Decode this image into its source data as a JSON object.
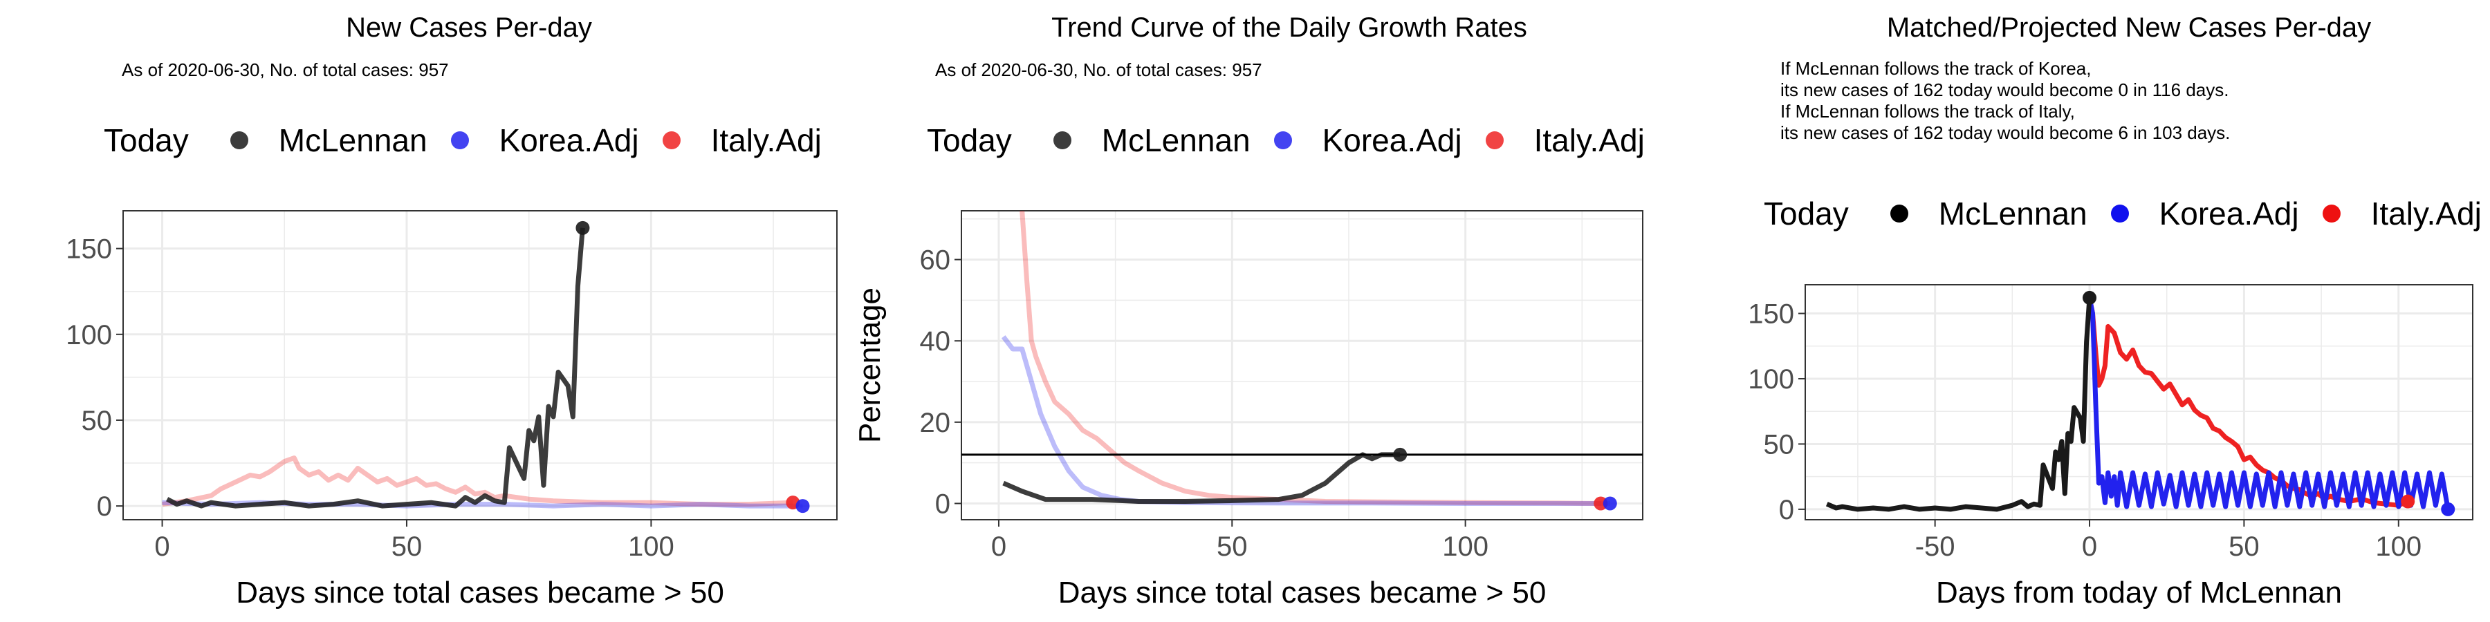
{
  "colors": {
    "mclennan": "#1a1a1a",
    "korea": "#2222ee",
    "italy": "#ee2222",
    "grid": "#ebebeb",
    "frame": "#333333"
  },
  "legend": {
    "title": "Today",
    "items": [
      "McLennan",
      "Korea.Adj",
      "Italy.Adj"
    ]
  },
  "panels": [
    {
      "title": "New Cases Per-day",
      "subtitle": "As of 2020-06-30, No. of total cases: 957"
    },
    {
      "title": "Trend Curve of the Daily Growth Rates",
      "subtitle": "As of 2020-06-30, No. of total cases: 957"
    },
    {
      "title": "Matched/Projected New Cases Per-day",
      "notes": [
        "If McLennan follows the track of Korea,",
        "its new cases of 162 today would become 0 in 116 days.",
        "If McLennan follows the track of Italy,",
        "its new cases of 162 today would become 6 in 103 days."
      ]
    }
  ],
  "chart_data": [
    {
      "type": "line",
      "title": "New Cases Per-day",
      "subtitle": "As of 2020-06-30, No. of total cases: 957",
      "xlabel": "Days since total cases became > 50",
      "ylabel": "",
      "xlim": [
        -8,
        138
      ],
      "ylim": [
        -8,
        172
      ],
      "xticks": [
        0,
        50,
        100
      ],
      "yticks": [
        0,
        50,
        100,
        150
      ],
      "grid": true,
      "legend_position": "top",
      "series": [
        {
          "name": "McLennan",
          "color": "#1a1a1a",
          "x": [
            1,
            3,
            5,
            8,
            10,
            15,
            20,
            25,
            30,
            35,
            40,
            45,
            50,
            55,
            60,
            62,
            64,
            66,
            68,
            70,
            71,
            72,
            73,
            74,
            75,
            76,
            77,
            78,
            79,
            80,
            81,
            82,
            83,
            84,
            85,
            86
          ],
          "y": [
            4,
            1,
            3,
            0,
            2,
            0,
            1,
            2,
            0,
            1,
            3,
            0,
            1,
            2,
            0,
            5,
            2,
            6,
            3,
            2,
            34,
            28,
            22,
            16,
            44,
            38,
            52,
            12,
            58,
            52,
            78,
            74,
            70,
            52,
            128,
            162
          ]
        },
        {
          "name": "Korea.Adj",
          "color": "#2222ee",
          "x": [
            0,
            10,
            20,
            30,
            40,
            50,
            60,
            70,
            80,
            90,
            100,
            110,
            120,
            131
          ],
          "y": [
            2,
            1,
            2,
            1,
            1,
            0,
            1,
            1,
            0,
            1,
            0,
            1,
            0,
            0
          ]
        },
        {
          "name": "Italy.Adj",
          "color": "#ee2222",
          "x": [
            0,
            5,
            10,
            12,
            15,
            18,
            20,
            22,
            25,
            27,
            28,
            30,
            32,
            34,
            36,
            38,
            40,
            42,
            44,
            46,
            48,
            50,
            52,
            54,
            56,
            58,
            60,
            62,
            64,
            66,
            68,
            70,
            75,
            80,
            90,
            100,
            110,
            120,
            129
          ],
          "y": [
            1,
            3,
            6,
            10,
            14,
            18,
            17,
            20,
            26,
            28,
            22,
            18,
            20,
            15,
            18,
            15,
            22,
            18,
            14,
            16,
            12,
            14,
            16,
            12,
            13,
            10,
            8,
            11,
            7,
            8,
            5,
            6,
            4,
            3,
            2,
            2,
            1,
            1,
            2
          ]
        }
      ],
      "today_points": [
        {
          "series": "McLennan",
          "x": 86,
          "y": 162
        },
        {
          "series": "Italy.Adj",
          "x": 129,
          "y": 2
        },
        {
          "series": "Korea.Adj",
          "x": 131,
          "y": 0
        }
      ]
    },
    {
      "type": "line",
      "title": "Trend Curve of the Daily Growth Rates",
      "subtitle": "As of 2020-06-30, No. of total cases: 957",
      "xlabel": "Days since total cases became > 50",
      "ylabel": "Percentage",
      "xlim": [
        -8,
        138
      ],
      "ylim": [
        -4,
        72
      ],
      "xticks": [
        0,
        50,
        100
      ],
      "yticks": [
        0,
        20,
        40,
        60
      ],
      "grid": true,
      "legend_position": "top",
      "hline": 12,
      "series": [
        {
          "name": "McLennan",
          "color": "#1a1a1a",
          "x": [
            1,
            5,
            10,
            15,
            20,
            30,
            40,
            50,
            60,
            65,
            70,
            75,
            78,
            80,
            82,
            84,
            86
          ],
          "y": [
            5,
            3,
            1,
            1,
            1,
            0.5,
            0.5,
            0.7,
            1,
            2,
            5,
            10,
            12,
            11,
            12,
            12,
            12
          ]
        },
        {
          "name": "Korea.Adj",
          "color": "#2222ee",
          "x": [
            1,
            3,
            5,
            7,
            9,
            12,
            15,
            18,
            22,
            26,
            30,
            40,
            60,
            80,
            100,
            120,
            131
          ],
          "y": [
            41,
            38,
            38,
            30,
            22,
            14,
            8,
            4,
            2,
            1,
            0.5,
            0.2,
            0.1,
            0.1,
            0,
            0,
            0
          ]
        },
        {
          "name": "Italy.Adj",
          "color": "#ee2222",
          "x": [
            5,
            6,
            7,
            8,
            10,
            12,
            15,
            18,
            21,
            24,
            27,
            30,
            35,
            40,
            45,
            50,
            60,
            70,
            80,
            100,
            120,
            129
          ],
          "y": [
            72,
            55,
            40,
            36,
            30,
            25,
            22,
            18,
            16,
            13,
            10,
            8,
            5,
            3,
            2,
            1.5,
            1,
            0.5,
            0.4,
            0.2,
            0.1,
            0
          ]
        }
      ],
      "today_points": [
        {
          "series": "McLennan",
          "x": 86,
          "y": 12
        },
        {
          "series": "Italy.Adj",
          "x": 129,
          "y": 0
        },
        {
          "series": "Korea.Adj",
          "x": 131,
          "y": 0
        }
      ]
    },
    {
      "type": "line",
      "title": "Matched/Projected New Cases Per-day",
      "xlabel": "Days from today of McLennan",
      "ylabel": "",
      "xlim": [
        -92,
        124
      ],
      "ylim": [
        -8,
        172
      ],
      "xticks": [
        -50,
        0,
        50,
        100
      ],
      "yticks": [
        0,
        50,
        100,
        150
      ],
      "grid": true,
      "legend_position": "top",
      "series": [
        {
          "name": "McLennan",
          "color": "#1a1a1a",
          "x": [
            -85,
            -82,
            -80,
            -75,
            -70,
            -65,
            -60,
            -55,
            -50,
            -45,
            -40,
            -35,
            -30,
            -25,
            -22,
            -20,
            -18,
            -16,
            -15,
            -14,
            -13,
            -12,
            -11,
            -10,
            -9,
            -8,
            -7,
            -6,
            -5,
            -4,
            -3,
            -2,
            -1,
            0
          ],
          "y": [
            4,
            1,
            2,
            0,
            1,
            0,
            2,
            0,
            1,
            0,
            2,
            1,
            0,
            3,
            6,
            2,
            4,
            3,
            34,
            28,
            22,
            16,
            44,
            38,
            52,
            12,
            58,
            52,
            78,
            74,
            70,
            52,
            128,
            162
          ]
        },
        {
          "name": "Korea.Adj",
          "color": "#2222ee",
          "x": [
            0,
            1,
            2,
            3,
            4,
            5,
            6,
            7,
            8,
            9,
            10,
            12,
            14,
            16,
            18,
            20,
            22,
            24,
            26,
            28,
            30,
            32,
            34,
            36,
            38,
            40,
            42,
            44,
            46,
            48,
            50,
            52,
            54,
            56,
            58,
            60,
            62,
            64,
            66,
            68,
            70,
            72,
            74,
            76,
            78,
            80,
            82,
            84,
            86,
            88,
            90,
            92,
            94,
            96,
            98,
            100,
            102,
            104,
            106,
            108,
            110,
            112,
            114,
            116
          ],
          "y": [
            162,
            150,
            80,
            20,
            25,
            5,
            28,
            10,
            25,
            3,
            28,
            2,
            28,
            3,
            27,
            2,
            28,
            4,
            26,
            2,
            28,
            3,
            27,
            2,
            28,
            3,
            27,
            2,
            28,
            3,
            28,
            2,
            27,
            3,
            28,
            2,
            28,
            3,
            27,
            2,
            28,
            3,
            27,
            2,
            28,
            3,
            27,
            2,
            28,
            3,
            28,
            2,
            27,
            3,
            28,
            2,
            28,
            3,
            27,
            2,
            28,
            3,
            27,
            0
          ]
        },
        {
          "name": "Italy.Adj",
          "color": "#ee2222",
          "x": [
            0,
            1,
            2,
            3,
            4,
            5,
            6,
            8,
            10,
            12,
            14,
            16,
            18,
            20,
            22,
            24,
            26,
            28,
            30,
            32,
            34,
            36,
            38,
            40,
            42,
            44,
            46,
            48,
            50,
            52,
            54,
            56,
            58,
            60,
            62,
            64,
            66,
            68,
            70,
            72,
            74,
            76,
            78,
            80,
            84,
            88,
            92,
            96,
            100,
            103
          ],
          "y": [
            162,
            150,
            120,
            95,
            100,
            110,
            140,
            135,
            120,
            115,
            122,
            110,
            105,
            104,
            98,
            92,
            96,
            88,
            80,
            84,
            76,
            72,
            70,
            62,
            60,
            55,
            52,
            48,
            38,
            40,
            34,
            30,
            28,
            24,
            22,
            18,
            16,
            15,
            12,
            10,
            12,
            8,
            10,
            8,
            6,
            8,
            5,
            4,
            3,
            6
          ]
        }
      ],
      "today_points": [
        {
          "series": "McLennan",
          "x": 0,
          "y": 162
        },
        {
          "series": "Italy.Adj",
          "x": 103,
          "y": 6
        },
        {
          "series": "Korea.Adj",
          "x": 116,
          "y": 0
        }
      ]
    }
  ]
}
